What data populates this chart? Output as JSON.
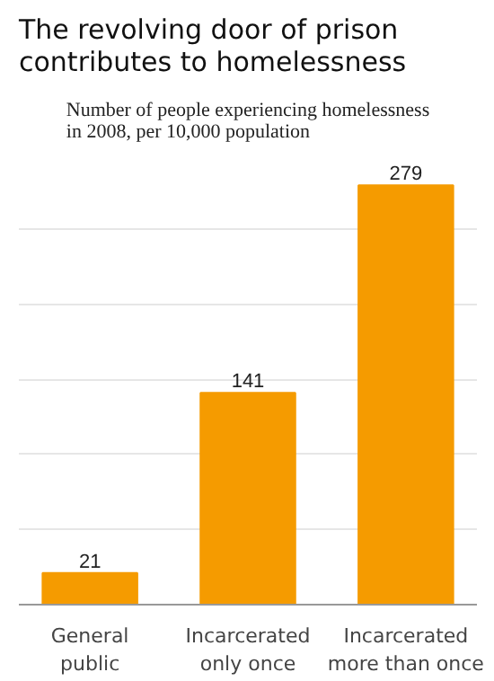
{
  "chart_data": {
    "type": "bar",
    "title": "The revolving door of prison contributes to homelessness",
    "subtitle": "Number of people experiencing homelessness in 2008, per 10,000 population",
    "categories": [
      "General\npublic",
      "Incarcerated\nonly once",
      "Incarcerated\nmore than once"
    ],
    "values": [
      21,
      141,
      279
    ],
    "color": "#f59b00",
    "data_labels": true,
    "yticks": [
      {
        "value": 50,
        "label": null
      },
      {
        "value": 100,
        "label": null
      },
      {
        "value": 150,
        "label": null
      },
      {
        "value": 200,
        "label": null
      },
      {
        "value": 250,
        "label": null
      }
    ],
    "grid": "y",
    "tick_labels": "x"
  }
}
